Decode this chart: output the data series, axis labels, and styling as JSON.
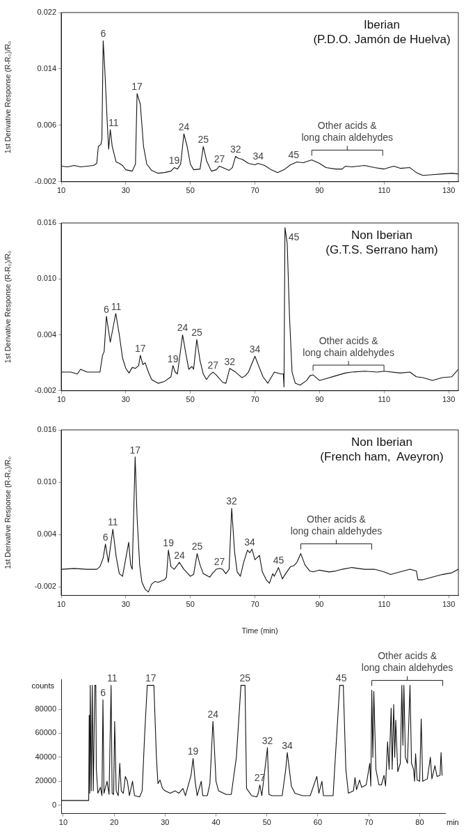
{
  "chart_data": [
    {
      "type": "line",
      "title": "Iberian",
      "subtitle": "(P.D.O. Jamón de Huelva)",
      "ylabel": "1st Derivative Response (R-R₀)/R₀",
      "color": "#111111",
      "x": [
        10,
        12,
        14,
        16,
        18,
        20,
        21,
        21.5,
        22.3,
        22.6,
        23,
        23.5,
        24.3,
        24.7,
        25.2,
        25.8,
        27,
        28,
        29,
        30,
        32,
        33,
        33.5,
        34.5,
        35.5,
        36.5,
        38,
        40,
        42,
        44,
        45,
        46,
        47,
        48,
        49,
        50,
        51,
        53,
        54,
        55,
        56.5,
        58,
        59,
        60,
        62,
        63,
        64,
        65,
        66,
        68,
        70,
        71,
        73,
        75,
        77,
        79,
        81,
        83,
        85,
        87.6,
        90,
        92,
        95,
        97,
        98,
        100,
        104,
        107,
        110,
        113,
        115,
        118,
        120,
        122,
        125,
        128,
        131,
        133
      ],
      "values": [
        0.0002,
        0.0001,
        0.0003,
        0.0001,
        0.0002,
        0.0003,
        0.0006,
        0.003,
        0.0033,
        0.004,
        0.018,
        0.014,
        0.006,
        0.0026,
        0.0054,
        0.003,
        0.0008,
        0.0006,
        0.0003,
        -0.0003,
        -0.0005,
        0.0005,
        0.0105,
        0.009,
        0.003,
        0.0005,
        -0.0004,
        -0.0008,
        -0.0007,
        -0.0005,
        0.0,
        -0.0002,
        0.0005,
        0.0048,
        0.003,
        0.0005,
        -0.0003,
        -0.0002,
        0.003,
        0.001,
        -0.0005,
        -0.0003,
        0.0002,
        0.0,
        -0.0004,
        0.0,
        0.0016,
        0.0013,
        0.0012,
        0.0006,
        0.0004,
        0.0006,
        0.0003,
        -0.0003,
        -0.0007,
        -0.0003,
        0.0004,
        0.0008,
        0.0007,
        0.0011,
        0.0006,
        0.0,
        -0.0002,
        -0.0002,
        0.0002,
        0.0001,
        0.0003,
        0.0,
        -0.0002,
        0.0002,
        -0.0001,
        0.0,
        -0.0007,
        -0.0011,
        -0.001,
        -0.0009,
        -0.0008,
        -0.0009
      ],
      "xlim": [
        10,
        133
      ],
      "xticks": [
        10,
        30,
        50,
        70,
        90,
        110,
        130
      ],
      "ylim": [
        -0.002,
        0.022
      ],
      "yticks": [
        -0.002,
        0.006,
        0.014,
        0.022
      ],
      "annotations": [
        {
          "text": "6",
          "x": 23,
          "y": 0.018
        },
        {
          "text": "11",
          "x": 26.2,
          "y": 0.0054
        },
        {
          "text": "17",
          "x": 33.5,
          "y": 0.0105
        },
        {
          "text": "19",
          "x": 45,
          "y": 0.0
        },
        {
          "text": "24",
          "x": 48,
          "y": 0.0048
        },
        {
          "text": "25",
          "x": 54,
          "y": 0.003
        },
        {
          "text": "27",
          "x": 59,
          "y": 0.0002
        },
        {
          "text": "32",
          "x": 64,
          "y": 0.0016
        },
        {
          "text": "34",
          "x": 71,
          "y": 0.0006
        },
        {
          "text": "45",
          "x": 82,
          "y": 0.0008
        },
        {
          "text": "Other acids &\nlong chain aldehydes",
          "x": 87.6,
          "y": 0.0011
        }
      ]
    },
    {
      "type": "line",
      "title": "Non Iberian",
      "subtitle": "(G.T.S. Serrano ham)",
      "ylabel": "1st Derivative Response (R-R₀)/R₀",
      "color": "#111111",
      "x": [
        10,
        13,
        15,
        16,
        18,
        21,
        22,
        22.8,
        23.3,
        24,
        25.2,
        26.9,
        28,
        29,
        30,
        31,
        32,
        33,
        34,
        34.5,
        35.3,
        36,
        37,
        38,
        40,
        42,
        44,
        44.6,
        45.3,
        46,
        47.6,
        48.6,
        49.5,
        50.5,
        51,
        52,
        53,
        54,
        55,
        56,
        57,
        58,
        60,
        61,
        62.2,
        64,
        66,
        67,
        68,
        70,
        71,
        72.5,
        74,
        75,
        76,
        78,
        78.8,
        79,
        79.3,
        80,
        80.7,
        81.5,
        82.5,
        84,
        86,
        87,
        88,
        90,
        92,
        95,
        98,
        100,
        104,
        108,
        110,
        115,
        118,
        120,
        122,
        125,
        128,
        131,
        133
      ],
      "values": [
        0.0,
        0.0,
        -0.0002,
        0.0003,
        0.0,
        0.0,
        0.0,
        0.0018,
        0.0022,
        0.006,
        0.0032,
        0.0063,
        0.004,
        0.0015,
        0.0004,
        -0.0001,
        0.0005,
        0.0004,
        0.0007,
        0.0018,
        0.0008,
        0.001,
        0.0,
        -0.0008,
        -0.0012,
        -0.001,
        -0.0005,
        0.0007,
        0.0,
        -0.0002,
        0.004,
        0.002,
        0.0003,
        0.0006,
        0.0003,
        0.0035,
        0.0012,
        -0.0002,
        -0.0008,
        -0.0003,
        0.0,
        -0.0003,
        -0.0011,
        -0.0012,
        0.0004,
        0.0,
        -0.0006,
        -0.0004,
        0.0,
        0.0017,
        0.0008,
        -0.0005,
        -0.0012,
        -0.0006,
        0.0,
        -0.0002,
        -0.0002,
        -0.0016,
        0.0155,
        0.0138,
        0.006,
        0.0,
        -0.0012,
        -0.0014,
        -0.0009,
        -0.0004,
        -0.0003,
        -0.0009,
        -0.0007,
        -0.0004,
        -0.0001,
        0.0,
        0.0001,
        0.0,
        0.0001,
        -0.0001,
        0.0,
        -0.0005,
        -0.0006,
        -0.0009,
        -0.0006,
        -0.0005,
        0.0003
      ],
      "xlim": [
        10,
        133
      ],
      "xticks": [
        10,
        30,
        50,
        70,
        90,
        110,
        130
      ],
      "ylim": [
        -0.002,
        0.016
      ],
      "yticks": [
        -0.002,
        0.004,
        {
          "value": 0.01,
          "label": "0.010"
        },
        0.016
      ],
      "annotations": [
        {
          "text": "6",
          "x": 24,
          "y": 0.006
        },
        {
          "text": "11",
          "x": 27,
          "y": 0.0063
        },
        {
          "text": "17",
          "x": 34.5,
          "y": 0.0018
        },
        {
          "text": "19",
          "x": 44.6,
          "y": 0.0007
        },
        {
          "text": "24",
          "x": 47.6,
          "y": 0.004
        },
        {
          "text": "25",
          "x": 52,
          "y": 0.0035
        },
        {
          "text": "27",
          "x": 57,
          "y": 0.0
        },
        {
          "text": "32",
          "x": 62.2,
          "y": 0.0004
        },
        {
          "text": "34",
          "x": 70,
          "y": 0.0017
        },
        {
          "text": "45",
          "x": 79.3,
          "y": 0.0155
        },
        {
          "text": "Other acids &\nlong chain aldehydes",
          "x": 88,
          "y": -0.0003
        }
      ]
    },
    {
      "type": "line",
      "title": "Non Iberian",
      "subtitle": "(French ham,  Aveyron)",
      "ylabel": "1st Derivative Response (R-R₀)/R₀",
      "xlabel": "Time (min)",
      "color": "#111111",
      "x": [
        10,
        14,
        18,
        21,
        22,
        23,
        23.7,
        24.6,
        26,
        27,
        28,
        29,
        30.9,
        31.5,
        32,
        32.9,
        33.5,
        34.3,
        35,
        36,
        37,
        38,
        39,
        40,
        42,
        42.6,
        43.2,
        44,
        45,
        46.6,
        48,
        50,
        51,
        52.1,
        53,
        54,
        56,
        57,
        58,
        59,
        60,
        61,
        62,
        62.8,
        63.7,
        64.5,
        65.5,
        66.5,
        67.7,
        68.4,
        69.1,
        70,
        71.4,
        72.3,
        73.5,
        74.5,
        75.5,
        76,
        77.3,
        78.5,
        79.5,
        81,
        82,
        83,
        84.2,
        85.5,
        87,
        88,
        90,
        93,
        95,
        97,
        100,
        104,
        107,
        110,
        112,
        114,
        116,
        118,
        120,
        120.5,
        122,
        125,
        128,
        131,
        133
      ],
      "values": [
        0.0,
        0.0001,
        0.0,
        0.0,
        0.0003,
        0.0013,
        0.0029,
        0.0008,
        0.0046,
        0.0015,
        -0.0005,
        -0.0008,
        0.0031,
        0.0005,
        0.0,
        0.0129,
        0.006,
        0.0005,
        -0.0015,
        -0.0023,
        -0.0026,
        -0.0017,
        -0.0014,
        -0.0015,
        -0.0012,
        -0.0009,
        0.0022,
        0.0003,
        0.0,
        0.0008,
        0.0,
        -0.0008,
        -0.0006,
        0.0018,
        0.0005,
        -0.0005,
        -0.0009,
        -0.0004,
        0.0,
        0.0001,
        0.0,
        -0.0005,
        0.0,
        0.007,
        0.002,
        -0.0003,
        -0.0008,
        0.0008,
        0.0022,
        0.0019,
        0.0023,
        0.0011,
        0.0016,
        -0.0003,
        -0.0012,
        -0.0016,
        -0.0005,
        -0.0008,
        0.0002,
        -0.0011,
        -0.0005,
        0.0003,
        0.0004,
        0.0008,
        0.0018,
        0.0005,
        -0.0002,
        -0.0003,
        -0.0001,
        -0.0003,
        -0.0002,
        0.0,
        0.0002,
        0.0,
        0.0,
        -0.0003,
        -0.0006,
        -0.0004,
        -0.0002,
        0.0,
        -0.0002,
        -0.0012,
        -0.0012,
        -0.0009,
        -0.0006,
        -0.0004,
        0.0
      ],
      "xlim": [
        10,
        133
      ],
      "xticks": [
        10,
        30,
        50,
        70,
        90,
        110,
        130
      ],
      "ylim": [
        -0.003,
        0.016
      ],
      "yticks": [
        -0.002,
        0.004,
        {
          "value": 0.01,
          "label": "0.010"
        },
        0.016
      ],
      "annotations": [
        {
          "text": "6",
          "x": 23.7,
          "y": 0.0029
        },
        {
          "text": "11",
          "x": 26,
          "y": 0.0046
        },
        {
          "text": "17",
          "x": 32.9,
          "y": 0.0129
        },
        {
          "text": "19",
          "x": 43.2,
          "y": 0.0022
        },
        {
          "text": "24",
          "x": 46.6,
          "y": 0.0008
        },
        {
          "text": "25",
          "x": 52.1,
          "y": 0.0018
        },
        {
          "text": "27",
          "x": 59,
          "y": 0.0001
        },
        {
          "text": "32",
          "x": 62.8,
          "y": 0.007
        },
        {
          "text": "34",
          "x": 68.4,
          "y": 0.0023
        },
        {
          "text": "45",
          "x": 77.3,
          "y": 0.0002
        },
        {
          "text": "Other acids &\nlong chain aldehydes",
          "x": 84.2,
          "y": 0.0018
        }
      ]
    },
    {
      "type": "line",
      "ylabel": "counts",
      "xlabel": "min",
      "color": "#111111",
      "x": [
        9.6,
        12.5,
        15,
        15.1,
        15.2,
        15.3,
        15.5,
        15.7,
        15.9,
        16.2,
        16.4,
        16.5,
        16.8,
        17.3,
        17.6,
        17.8,
        18,
        18.6,
        19,
        19.4,
        19.6,
        19.9,
        20.1,
        20.4,
        20.8,
        21.1,
        21.4,
        21.8,
        22.2,
        22.6,
        23,
        23.6,
        24,
        25,
        25.5,
        26,
        26.5,
        27.8,
        28.3,
        28.6,
        29,
        29.5,
        30,
        31,
        32,
        32.7,
        33.5,
        34,
        35.1,
        35.5,
        35.9,
        36.3,
        37.1,
        37.4,
        38.3,
        38.8,
        39.4,
        39.6,
        40,
        40.5,
        42,
        43,
        44,
        44.9,
        45.7,
        46,
        47,
        48,
        48.3,
        48.6,
        49,
        50.1,
        50.4,
        51,
        53,
        53.7,
        54,
        54.4,
        54.8,
        55.5,
        57,
        58.5,
        59.8,
        60.2,
        60.8,
        61.1,
        63,
        63.3,
        64.3,
        65,
        65.5,
        66,
        67,
        67.3,
        67.6,
        68.2,
        68.6,
        69.5,
        70.2,
        70.4,
        70.6,
        70.8,
        71,
        71.4,
        72,
        72.5,
        73,
        73.3,
        73.7,
        74,
        74.4,
        74.6,
        74.9,
        75.1,
        75.3,
        75.7,
        76.2,
        76.5,
        76.7,
        76.9,
        77.2,
        77.6,
        78.1,
        78.4,
        78.8,
        79,
        79.2,
        79.5,
        80,
        80.3,
        80.6,
        81.5,
        82.1,
        82.4,
        83,
        83.4,
        84,
        84.2,
        84.4
      ],
      "values": [
        4000,
        4000,
        4000,
        75000,
        10000,
        100000,
        12000,
        100000,
        12000,
        100000,
        100000,
        30000,
        10000,
        15000,
        8000,
        88000,
        10000,
        20000,
        9000,
        100000,
        10000,
        9000,
        70000,
        12000,
        8000,
        35000,
        12000,
        10000,
        24000,
        20000,
        8000,
        20000,
        8000,
        7000,
        12000,
        60000,
        100000,
        100000,
        40000,
        18000,
        21000,
        14000,
        12000,
        10000,
        12000,
        10000,
        14000,
        8000,
        25000,
        39000,
        20000,
        8000,
        20000,
        8000,
        8000,
        18000,
        70000,
        55000,
        20000,
        12000,
        9000,
        9000,
        40000,
        100000,
        100000,
        14000,
        8000,
        7000,
        10000,
        17000,
        8000,
        48000,
        9000,
        8000,
        8000,
        30000,
        44000,
        30000,
        16000,
        10000,
        8000,
        8000,
        24000,
        10000,
        20000,
        8000,
        8000,
        30000,
        100000,
        100000,
        30000,
        10000,
        12000,
        23000,
        13000,
        21000,
        15000,
        17000,
        35000,
        16000,
        96000,
        40000,
        95000,
        30000,
        17000,
        17000,
        25000,
        16000,
        53000,
        30000,
        81000,
        30000,
        84000,
        40000,
        71000,
        28000,
        35000,
        100000,
        50000,
        100000,
        40000,
        35000,
        100000,
        35000,
        30000,
        20000,
        43000,
        21000,
        20000,
        72000,
        20000,
        22000,
        40000,
        22000,
        33000,
        24000,
        25000,
        44000,
        25000
      ],
      "xlim": [
        9.6,
        85
      ],
      "xticks": [
        10,
        20,
        30,
        40,
        50,
        60,
        70,
        80
      ],
      "ylim": [
        -7000,
        105000
      ],
      "yticks": [
        0,
        20000,
        40000,
        60000,
        80000
      ],
      "annotations": [
        {
          "text": "6",
          "x": 17.8,
          "y": 88000
        },
        {
          "text": "11",
          "x": 19.6,
          "y": 100000
        },
        {
          "text": "17",
          "x": 27.2,
          "y": 100000
        },
        {
          "text": "19",
          "x": 35.5,
          "y": 39000
        },
        {
          "text": "24",
          "x": 39.4,
          "y": 70000
        },
        {
          "text": "25",
          "x": 45.7,
          "y": 100000
        },
        {
          "text": "27",
          "x": 48.6,
          "y": 17000
        },
        {
          "text": "32",
          "x": 50.1,
          "y": 48000
        },
        {
          "text": "34",
          "x": 54,
          "y": 44000
        },
        {
          "text": "45",
          "x": 64.6,
          "y": 100000
        },
        {
          "text": "Other acids &\nlong chain aldehydes",
          "x": 70.6,
          "y": 96000
        }
      ]
    }
  ]
}
